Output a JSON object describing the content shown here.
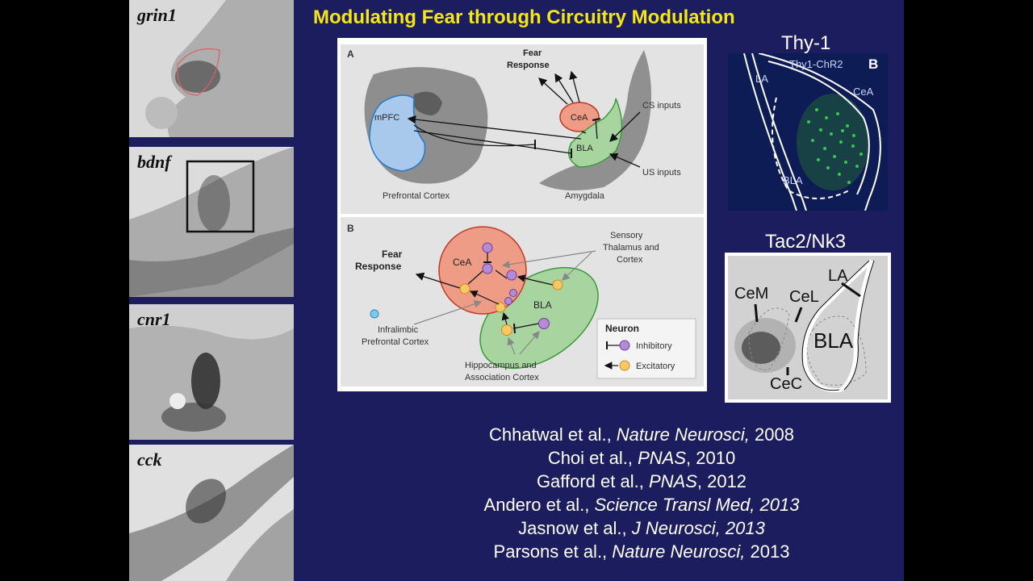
{
  "slide": {
    "title": "Modulating Fear through Circuitry Modulation"
  },
  "left_panels": [
    {
      "gene": "grin1"
    },
    {
      "gene": "bdnf"
    },
    {
      "gene": "cnr1"
    },
    {
      "gene": "cck"
    }
  ],
  "diagram": {
    "panel_a": {
      "letter": "A",
      "fear_response_line1": "Fear",
      "fear_response_line2": "Response",
      "mpfc": "mPFC",
      "cea": "CeA",
      "bla": "BLA",
      "cs_inputs": "CS inputs",
      "us_inputs": "US inputs",
      "prefrontal_cortex": "Prefrontal Cortex",
      "amygdala": "Amygdala"
    },
    "panel_b": {
      "letter": "B",
      "fear_response_line1": "Fear",
      "fear_response_line2": "Response",
      "cea": "CeA",
      "bla": "BLA",
      "sensory_line1": "Sensory",
      "sensory_line2": "Thalamus and",
      "sensory_line3": "Cortex",
      "infralimbic_line1": "Infralimbic",
      "infralimbic_line2": "Prefrontal Cortex",
      "hippocampus_line1": "Hippocampus and",
      "hippocampus_line2": "Association Cortex",
      "legend_title": "Neuron",
      "legend_inhibitory": "Inhibitory",
      "legend_excitatory": "Excitatory"
    },
    "colors": {
      "mpfc_fill": "#a9c9ec",
      "cea_fill": "#ee9c85",
      "bla_fill": "#a8d4a0",
      "inhibitory_neuron": "#b48cd6",
      "excitatory_neuron": "#f6c866"
    }
  },
  "thy1": {
    "title": "Thy-1",
    "sublabel": "Thy1-ChR2",
    "letter": "B",
    "la": "LA",
    "cea": "CeA",
    "bla": "BLA"
  },
  "tac2": {
    "title": "Tac2/Nk3",
    "cem": "CeM",
    "cel": "CeL",
    "la": "LA",
    "bla": "BLA",
    "cec": "CeC"
  },
  "references": [
    {
      "authors": "Chhatwal et al., ",
      "journal": "Nature Neurosci,",
      "year": " 2008"
    },
    {
      "authors": "Choi et al., ",
      "journal": "PNAS",
      "year": ", 2010"
    },
    {
      "authors": "Gafford et al., ",
      "journal": "PNAS",
      "year": ", 2012"
    },
    {
      "authors": "Andero et al., ",
      "journal": "Science Transl Med, 2013",
      "year": ""
    },
    {
      "authors": "Jasnow et al., ",
      "journal": "J Neurosci, 2013",
      "year": ""
    },
    {
      "authors": "Parsons  et al., ",
      "journal": "Nature Neurosci,",
      "year": " 2013"
    }
  ]
}
